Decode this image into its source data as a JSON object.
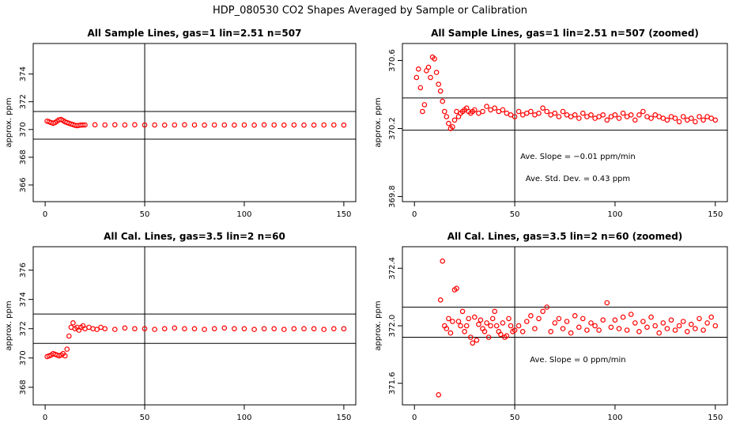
{
  "title": "HDP_080530  CO2 Shapes Averaged by Sample or Calibration",
  "chart_data": [
    {
      "type": "scatter",
      "title": "All Sample Lines, gas=1 lin=2.51 n=507",
      "xlabel": "",
      "ylabel": "approx. ppm",
      "xlim": [
        -6,
        156
      ],
      "ylim": [
        364.8,
        376.2
      ],
      "xticks": [
        "0",
        "50",
        "100",
        "150"
      ],
      "yticks": [
        "366",
        "368",
        "370",
        "372",
        "374"
      ],
      "hlines": [
        371.3,
        369.3
      ],
      "vline": 50,
      "annotations": [],
      "series": [
        {
          "color": "#ff0000",
          "x": [
            1,
            2,
            3,
            4,
            5,
            6,
            7,
            8,
            9,
            10,
            11,
            12,
            13,
            14,
            15,
            16,
            17,
            18,
            19,
            20,
            25,
            30,
            35,
            40,
            45,
            50,
            55,
            60,
            65,
            70,
            75,
            80,
            85,
            90,
            95,
            100,
            105,
            110,
            115,
            120,
            125,
            130,
            135,
            140,
            145,
            150
          ],
          "y": [
            370.6,
            370.55,
            370.5,
            370.45,
            370.5,
            370.6,
            370.7,
            370.72,
            370.65,
            370.55,
            370.5,
            370.45,
            370.4,
            370.35,
            370.3,
            370.28,
            370.3,
            370.32,
            370.33,
            370.33,
            370.34,
            370.33,
            370.34,
            370.33,
            370.34,
            370.33,
            370.33,
            370.32,
            370.33,
            370.34,
            370.33,
            370.32,
            370.33,
            370.33,
            370.32,
            370.33,
            370.32,
            370.34,
            370.33,
            370.32,
            370.33,
            370.32,
            370.32,
            370.33,
            370.33,
            370.32
          ]
        }
      ]
    },
    {
      "type": "scatter",
      "title": "All Sample Lines, gas=1 lin=2.51 n=507 (zoomed)",
      "xlabel": "",
      "ylabel": "approx. ppm",
      "xlim": [
        -6,
        156
      ],
      "ylim": [
        369.77,
        370.7
      ],
      "xticks": [
        "0",
        "50",
        "100",
        "150"
      ],
      "yticks": [
        "369.8",
        "370.2",
        "370.6"
      ],
      "hlines": [
        370.38,
        370.19
      ],
      "vline": 50,
      "annotations": [
        "Ave. Slope = −0.01  ppm/min",
        "Ave. Std. Dev. = 0.43  ppm"
      ],
      "series": [
        {
          "color": "#ff0000",
          "x": [
            1,
            2,
            3,
            4,
            5,
            6,
            7,
            8,
            9,
            10,
            11,
            12,
            13,
            14,
            15,
            16,
            17,
            18,
            19,
            20,
            21,
            22,
            23,
            24,
            25,
            26,
            27,
            28,
            29,
            30,
            32,
            34,
            36,
            38,
            40,
            42,
            44,
            46,
            48,
            50,
            52,
            54,
            56,
            58,
            60,
            62,
            64,
            66,
            68,
            70,
            72,
            74,
            76,
            78,
            80,
            82,
            84,
            86,
            88,
            90,
            92,
            94,
            96,
            98,
            100,
            102,
            104,
            106,
            108,
            110,
            112,
            114,
            116,
            118,
            120,
            122,
            124,
            126,
            128,
            130,
            132,
            134,
            136,
            138,
            140,
            142,
            144,
            146,
            148,
            150
          ],
          "y": [
            370.5,
            370.55,
            370.44,
            370.3,
            370.34,
            370.54,
            370.56,
            370.5,
            370.62,
            370.61,
            370.53,
            370.46,
            370.42,
            370.36,
            370.3,
            370.27,
            370.23,
            370.2,
            370.21,
            370.25,
            370.3,
            370.27,
            370.29,
            370.3,
            370.31,
            370.32,
            370.3,
            370.29,
            370.3,
            370.31,
            370.29,
            370.3,
            370.33,
            370.31,
            370.32,
            370.3,
            370.31,
            370.29,
            370.28,
            370.27,
            370.3,
            370.28,
            370.29,
            370.3,
            370.28,
            370.29,
            370.32,
            370.3,
            370.28,
            370.29,
            370.27,
            370.3,
            370.28,
            370.27,
            370.28,
            370.26,
            370.29,
            370.27,
            370.28,
            370.26,
            370.27,
            370.28,
            370.25,
            370.27,
            370.28,
            370.26,
            370.29,
            370.27,
            370.28,
            370.25,
            370.28,
            370.3,
            370.27,
            370.26,
            370.28,
            370.27,
            370.26,
            370.25,
            370.27,
            370.26,
            370.24,
            370.27,
            370.25,
            370.26,
            370.24,
            370.27,
            370.25,
            370.27,
            370.26,
            370.25
          ]
        }
      ]
    },
    {
      "type": "scatter",
      "title": "All Cal. Lines, gas=3.5 lin=2 n=60",
      "xlabel": "",
      "ylabel": "approx. ppm",
      "xlim": [
        -6,
        156
      ],
      "ylim": [
        366.8,
        377.6
      ],
      "xticks": [
        "0",
        "50",
        "100",
        "150"
      ],
      "yticks": [
        "368",
        "370",
        "372",
        "374",
        "376"
      ],
      "hlines": [
        373.0,
        371.0
      ],
      "vline": 50,
      "annotations": [],
      "series": [
        {
          "color": "#ff0000",
          "x": [
            1,
            2,
            3,
            4,
            5,
            6,
            7,
            8,
            9,
            10,
            11,
            12,
            13,
            14,
            15,
            16,
            17,
            18,
            19,
            20,
            22,
            24,
            26,
            28,
            30,
            35,
            40,
            45,
            50,
            55,
            60,
            65,
            70,
            75,
            80,
            85,
            90,
            95,
            100,
            105,
            110,
            115,
            120,
            125,
            130,
            135,
            140,
            145,
            150
          ],
          "y": [
            370.1,
            370.15,
            370.2,
            370.3,
            370.25,
            370.2,
            370.15,
            370.2,
            370.3,
            370.15,
            370.6,
            371.5,
            372.1,
            372.4,
            372.0,
            372.1,
            371.9,
            372.1,
            372.2,
            372.0,
            372.1,
            372.0,
            371.95,
            372.1,
            372.0,
            371.95,
            372.05,
            372.0,
            372.0,
            371.95,
            372.0,
            372.05,
            372.0,
            372.0,
            371.95,
            372.0,
            372.05,
            372.0,
            372.0,
            371.95,
            372.0,
            372.0,
            371.95,
            372.0,
            372.0,
            372.0,
            371.95,
            372.0,
            372.0
          ]
        }
      ]
    },
    {
      "type": "scatter",
      "title": "All Cal. Lines, gas=3.5 lin=2 n=60 (zoomed)",
      "xlabel": "",
      "ylabel": "approx. ppm",
      "xlim": [
        -6,
        156
      ],
      "ylim": [
        371.45,
        372.55
      ],
      "xticks": [
        "0",
        "50",
        "100",
        "150"
      ],
      "yticks": [
        "371.6",
        "372.0",
        "372.4"
      ],
      "hlines": [
        372.13,
        371.92
      ],
      "vline": 50,
      "annotations": [
        "Ave. Slope = 0  ppm/min"
      ],
      "series": [
        {
          "color": "#ff0000",
          "x": [
            12,
            13,
            14,
            15,
            16,
            17,
            18,
            19,
            20,
            21,
            22,
            23,
            24,
            25,
            26,
            27,
            28,
            29,
            30,
            31,
            32,
            33,
            34,
            35,
            36,
            37,
            38,
            39,
            40,
            41,
            42,
            43,
            44,
            45,
            46,
            47,
            48,
            49,
            50,
            52,
            54,
            56,
            58,
            60,
            62,
            64,
            66,
            68,
            70,
            72,
            74,
            76,
            78,
            80,
            82,
            84,
            86,
            88,
            90,
            92,
            94,
            96,
            98,
            100,
            102,
            104,
            106,
            108,
            110,
            112,
            114,
            116,
            118,
            120,
            122,
            124,
            126,
            128,
            130,
            132,
            134,
            136,
            138,
            140,
            142,
            144,
            146,
            148,
            150
          ],
          "y": [
            371.52,
            372.18,
            372.45,
            372.0,
            371.98,
            372.05,
            371.95,
            372.03,
            372.25,
            372.26,
            372.03,
            372.0,
            372.1,
            371.96,
            372.0,
            372.05,
            371.92,
            371.88,
            372.06,
            371.9,
            372.01,
            372.04,
            371.98,
            371.96,
            372.02,
            371.92,
            372.0,
            372.05,
            372.1,
            372.0,
            371.96,
            371.94,
            372.02,
            371.92,
            371.93,
            372.05,
            372.0,
            371.96,
            371.97,
            372.0,
            371.96,
            372.03,
            372.07,
            371.98,
            372.05,
            372.1,
            372.13,
            371.96,
            372.02,
            372.05,
            371.98,
            372.03,
            371.95,
            372.07,
            371.99,
            372.05,
            371.97,
            372.02,
            372.0,
            371.97,
            372.04,
            372.16,
            371.99,
            372.04,
            371.98,
            372.06,
            371.97,
            372.08,
            372.02,
            371.96,
            372.03,
            371.99,
            372.06,
            372.0,
            371.95,
            372.02,
            371.98,
            372.04,
            371.97,
            372.0,
            372.03,
            371.96,
            372.01,
            371.98,
            372.05,
            371.97,
            372.02,
            372.06,
            372.0
          ]
        }
      ]
    }
  ]
}
